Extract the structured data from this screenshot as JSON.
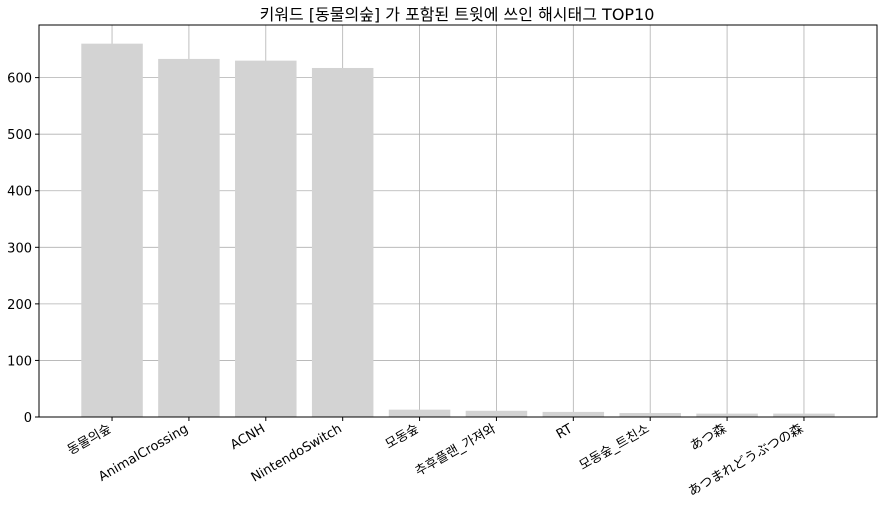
{
  "chart_data": {
    "type": "bar",
    "title": "키워드 [동물의숲] 가 포함된 트윗에 쓰인 해시태그 TOP10",
    "xlabel": "",
    "ylabel": "",
    "categories": [
      "동물의숲",
      "AnimalCrossing",
      "ACNH",
      "NintendoSwitch",
      "모동숲",
      "추후플랜_가져와",
      "RT",
      "모동숲_트친소",
      "あつ森",
      "あつまれどうぶつの森"
    ],
    "values": [
      660,
      633,
      630,
      617,
      13,
      11,
      9,
      7,
      6,
      6
    ],
    "ylim": [
      0,
      693
    ],
    "yticks": [
      0,
      100,
      200,
      300,
      400,
      500,
      600
    ],
    "grid": true,
    "bar_color": "#d3d3d3"
  }
}
